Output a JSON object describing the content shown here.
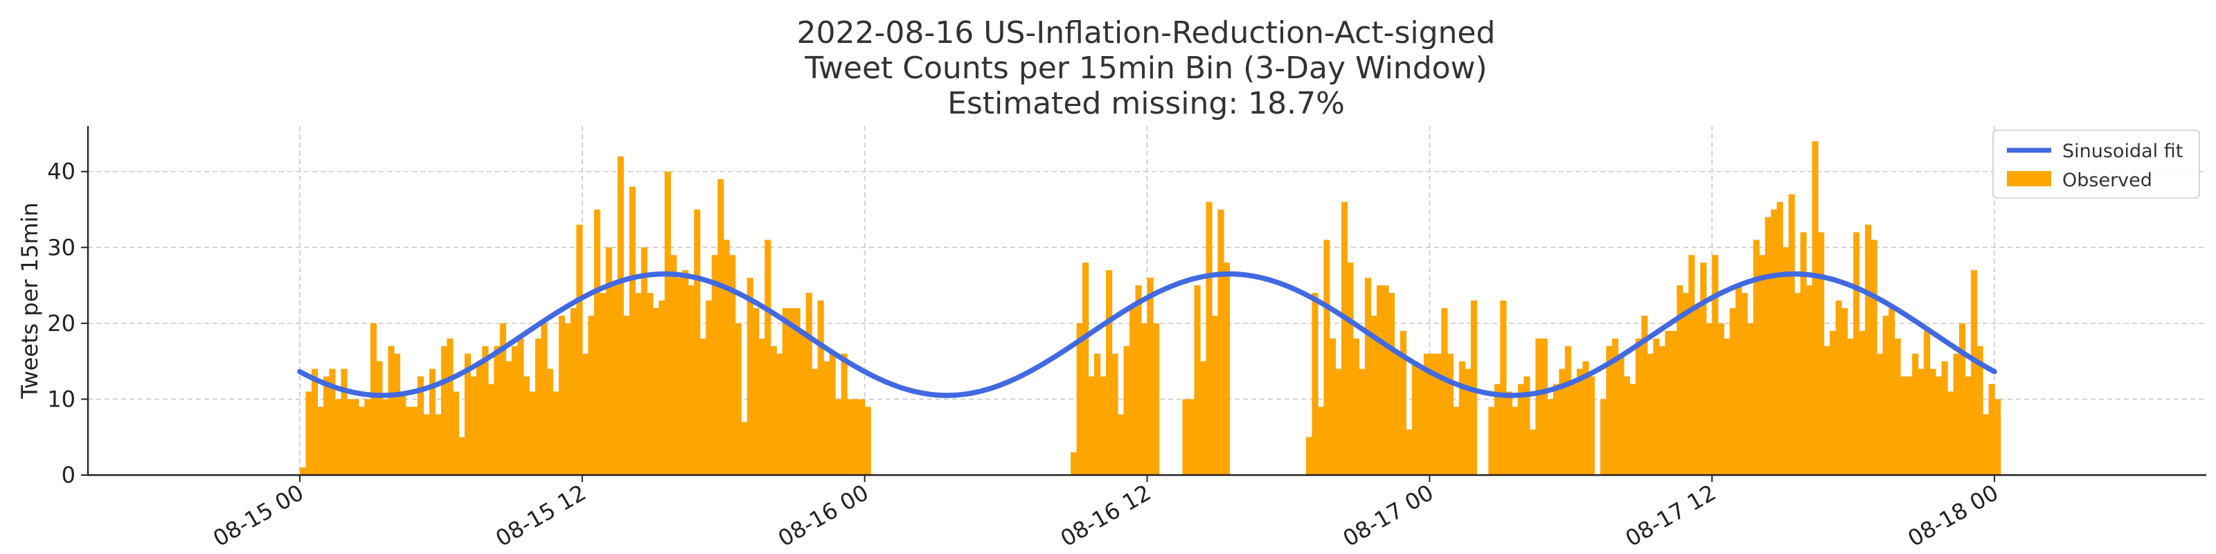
{
  "chart_data": {
    "type": "bar",
    "title_lines": [
      "2022-08-16 US-Inflation-Reduction-Act-signed",
      "Tweet Counts per 15min Bin (3-Day Window)",
      "Estimated missing: 18.7%"
    ],
    "xlabel": "",
    "ylabel": "Tweets per 15min",
    "ylim": [
      0,
      46
    ],
    "yticks": [
      0,
      10,
      20,
      30,
      40
    ],
    "xlim_hours": [
      -9,
      81
    ],
    "x_unit": "hours since 2022-08-15 00:00, 15-min bins",
    "xticks": [
      {
        "hour": 0,
        "label": "08-15 00"
      },
      {
        "hour": 12,
        "label": "08-15 12"
      },
      {
        "hour": 24,
        "label": "08-16 00"
      },
      {
        "hour": 36,
        "label": "08-16 12"
      },
      {
        "hour": 48,
        "label": "08-17 00"
      },
      {
        "hour": 60,
        "label": "08-17 12"
      },
      {
        "hour": 72,
        "label": "08-18 00"
      }
    ],
    "grid": true,
    "legend_position": "top-right",
    "colors": {
      "bars": "#ffa500",
      "fit": "#4169e1"
    },
    "series": [
      {
        "name": "Observed",
        "kind": "bar",
        "segments": [
          {
            "start_hour": 0.0,
            "values": [
              1,
              11,
              14,
              9,
              13,
              14,
              10,
              14,
              10,
              10,
              9,
              10,
              20,
              15,
              10,
              17,
              16,
              11,
              9,
              9,
              13,
              8,
              14,
              8,
              17,
              18,
              11,
              5,
              16,
              13,
              15,
              17,
              12,
              17,
              20,
              15,
              17,
              18,
              13,
              11,
              18,
              20,
              14,
              11,
              21,
              20,
              22,
              33,
              16,
              21,
              35,
              24,
              30,
              25,
              42,
              21,
              38,
              24,
              30,
              24,
              22,
              23,
              40,
              29,
              26,
              27,
              25,
              35,
              18,
              23,
              29,
              39,
              31,
              29,
              20,
              7,
              26,
              22,
              18,
              31,
              17,
              16,
              22,
              22,
              22,
              19,
              24,
              14,
              23,
              15,
              16,
              10,
              16,
              10,
              10,
              10,
              9
            ]
          },
          {
            "start_hour": 32.75,
            "values": [
              3,
              20,
              28,
              13,
              16,
              13,
              27,
              16,
              8,
              17,
              22,
              25,
              20,
              26,
              20
            ]
          },
          {
            "start_hour": 37.5,
            "values": [
              10,
              10,
              25,
              15,
              36,
              21,
              35,
              28
            ]
          },
          {
            "start_hour": 42.75,
            "values": [
              5,
              24,
              9,
              31,
              18,
              14,
              36,
              28,
              18,
              14,
              26,
              21,
              25,
              25,
              24,
              16,
              19,
              6,
              15,
              14,
              16,
              16,
              16,
              22,
              16,
              9,
              15,
              14,
              23
            ]
          },
          {
            "start_hour": 50.5,
            "values": [
              9,
              12,
              23,
              11,
              9,
              12,
              13,
              6,
              18,
              18,
              10,
              12,
              14,
              17,
              12,
              14,
              15,
              13
            ]
          },
          {
            "start_hour": 55.25,
            "values": [
              10,
              17,
              18,
              16,
              13,
              12,
              18,
              21,
              16,
              18,
              17,
              19,
              19,
              25,
              24,
              29,
              22,
              28,
              20,
              29,
              20,
              18,
              22,
              25,
              24,
              20,
              31,
              29,
              34,
              35,
              36,
              30,
              37,
              24,
              32,
              25,
              44,
              32,
              17,
              19,
              23,
              22,
              18,
              32,
              19,
              33,
              31,
              16,
              21,
              22,
              18,
              13,
              13,
              16,
              14,
              19,
              14,
              13,
              15,
              11,
              16,
              20,
              13,
              27,
              17,
              8,
              12,
              10
            ]
          }
        ]
      },
      {
        "name": "Sinusoidal fit",
        "kind": "line",
        "model": {
          "mean": 18.5,
          "amplitude": 8.0,
          "period_hours": 24,
          "peak_hour": 15.5
        },
        "x_range_hours": [
          0,
          72
        ]
      }
    ]
  }
}
